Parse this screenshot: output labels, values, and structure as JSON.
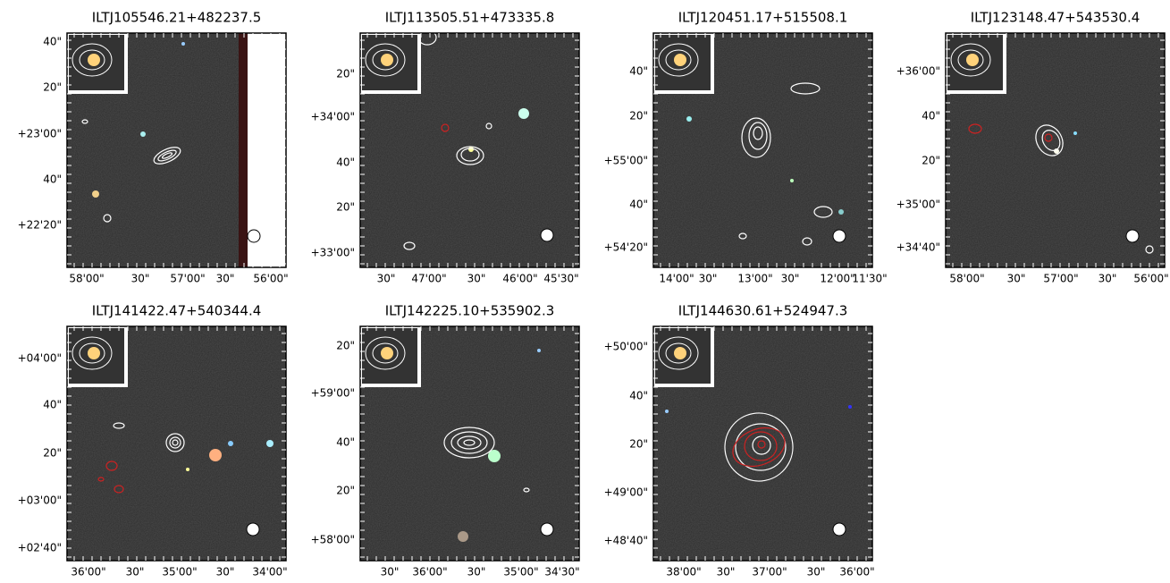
{
  "panels": [
    {
      "title": "ILTJ105546.21+482237.5",
      "y_labels": [
        "40\"",
        "20\"",
        "+23'00\"",
        "40\"",
        "+22'20\""
      ],
      "x_labels": [
        "58'00\"",
        "30\"",
        "57'00\"",
        "30\"",
        "56'00\""
      ]
    },
    {
      "title": "ILTJ113505.51+473335.8",
      "y_labels": [
        "20\"",
        "+34'00\"",
        "40\"",
        "20\"",
        "+33'00\""
      ],
      "x_labels": [
        "30\"",
        "47'00\"",
        "30\"",
        "46'00\"",
        "45'30\""
      ]
    },
    {
      "title": "ILTJ120451.17+515508.1",
      "y_labels": [
        "40\"",
        "20\"",
        "+55'00\"",
        "40\"",
        "+54'20\""
      ],
      "x_labels": [
        "14'00\"",
        "30\"",
        "13'00\"",
        "30\"",
        "12'00\"",
        "11'30\""
      ]
    },
    {
      "title": "ILTJ123148.47+543530.4",
      "y_labels": [
        "+36'00\"",
        "40\"",
        "20\"",
        "+35'00\"",
        "+34'40\""
      ],
      "x_labels": [
        "58'00\"",
        "30\"",
        "57'00\"",
        "30\"",
        "56'00\""
      ]
    },
    {
      "title": "ILTJ141422.47+540344.4",
      "y_labels": [
        "+04'00\"",
        "40\"",
        "20\"",
        "+03'00\"",
        "+02'40\""
      ],
      "x_labels": [
        "36'00\"",
        "30\"",
        "35'00\"",
        "30\"",
        "34'00\""
      ]
    },
    {
      "title": "ILTJ142225.10+535902.3",
      "y_labels": [
        "20\"",
        "+59'00\"",
        "40\"",
        "20\"",
        "+58'00\""
      ],
      "x_labels": [
        "30\"",
        "36'00\"",
        "30\"",
        "35'00\"",
        "34'30\""
      ]
    },
    {
      "title": "ILTJ144630.61+524947.3",
      "y_labels": [
        "+50'00\"",
        "40\"",
        "20\"",
        "+49'00\"",
        "+48'40\""
      ],
      "x_labels": [
        "38'00\"",
        "30\"",
        "37'00\"",
        "30\"",
        "36'00\""
      ]
    }
  ]
}
